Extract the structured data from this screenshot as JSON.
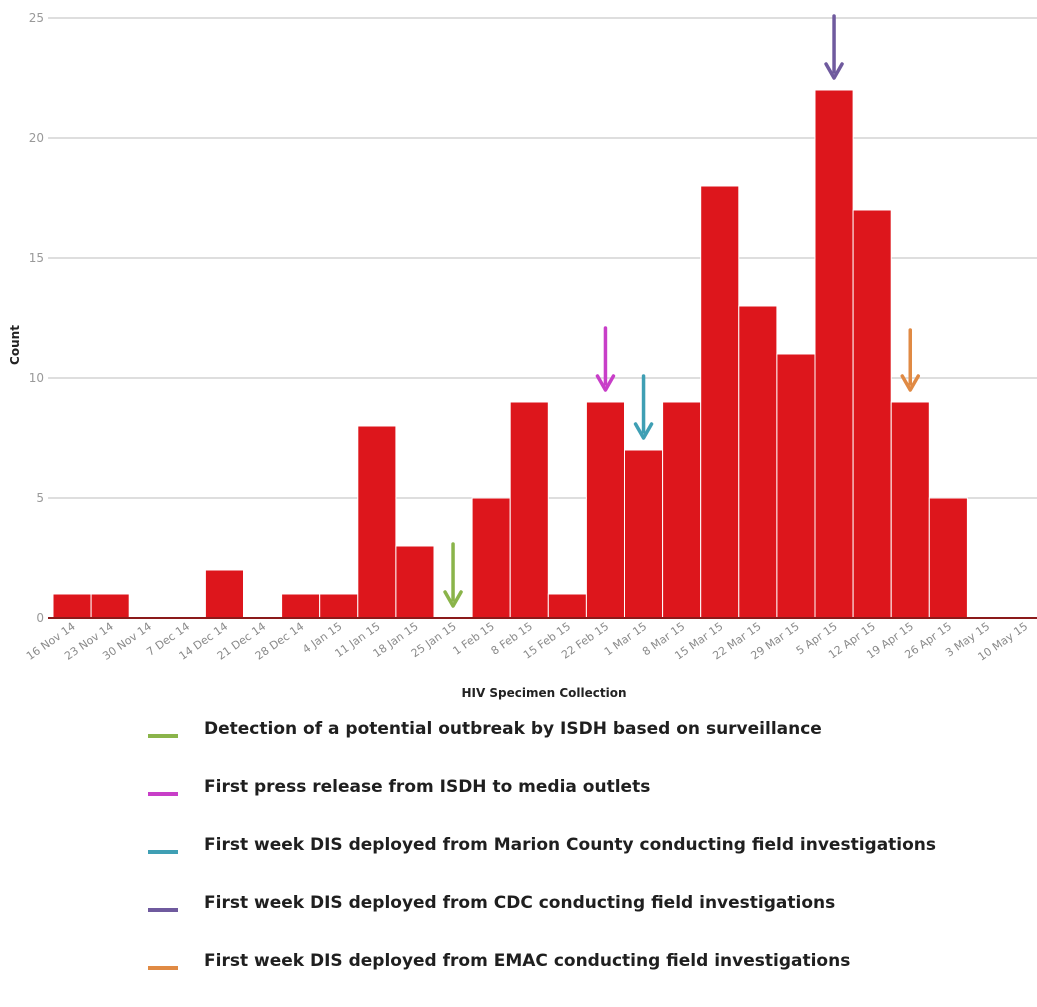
{
  "chart_data": {
    "type": "bar",
    "categories": [
      "16 Nov 14",
      "23 Nov 14",
      "30 Nov 14",
      "7 Dec 14",
      "14 Dec 14",
      "21 Dec 14",
      "28 Dec 14",
      "4 Jan 15",
      "11 Jan 15",
      "18 Jan 15",
      "25 Jan 15",
      "1 Feb 15",
      "8 Feb 15",
      "15 Feb 15",
      "22 Feb 15",
      "1 Mar 15",
      "8 Mar 15",
      "15 Mar 15",
      "22 Mar 15",
      "29 Mar 15",
      "5 Apr 15",
      "12 Apr 15",
      "19 Apr 15",
      "26 Apr 15",
      "3 May 15",
      "10 May 15"
    ],
    "values": [
      1,
      1,
      0,
      0,
      2,
      0,
      1,
      1,
      8,
      3,
      0,
      5,
      9,
      1,
      9,
      7,
      9,
      18,
      13,
      11,
      22,
      17,
      9,
      5,
      0,
      0
    ],
    "xlabel": "HIV Specimen Collection",
    "ylabel": "Count",
    "ylim": [
      0,
      25
    ],
    "yticks": [
      "0",
      "5",
      "10",
      "15",
      "20",
      "25"
    ],
    "grid": true,
    "bar_color": "#dd161c",
    "baseline_color": "#8b1a1a",
    "annotations": [
      {
        "category": "25 Jan 15",
        "color": "#8ab44a",
        "label": "Detection of a potential outbreak by ISDH based on surveillance"
      },
      {
        "category": "22 Feb 15",
        "color": "#c83ec8",
        "label": "First press release from ISDH to media outlets"
      },
      {
        "category": "1 Mar 15",
        "color": "#3f9fb4",
        "label": "First week DIS deployed from Marion County conducting field investigations"
      },
      {
        "category": "5 Apr 15",
        "color": "#6f5a9e",
        "label": "First week DIS deployed from CDC conducting field investigations"
      },
      {
        "category": "19 Apr 15",
        "color": "#e08a44",
        "label": "First week DIS deployed from EMAC conducting field investigations"
      }
    ]
  }
}
